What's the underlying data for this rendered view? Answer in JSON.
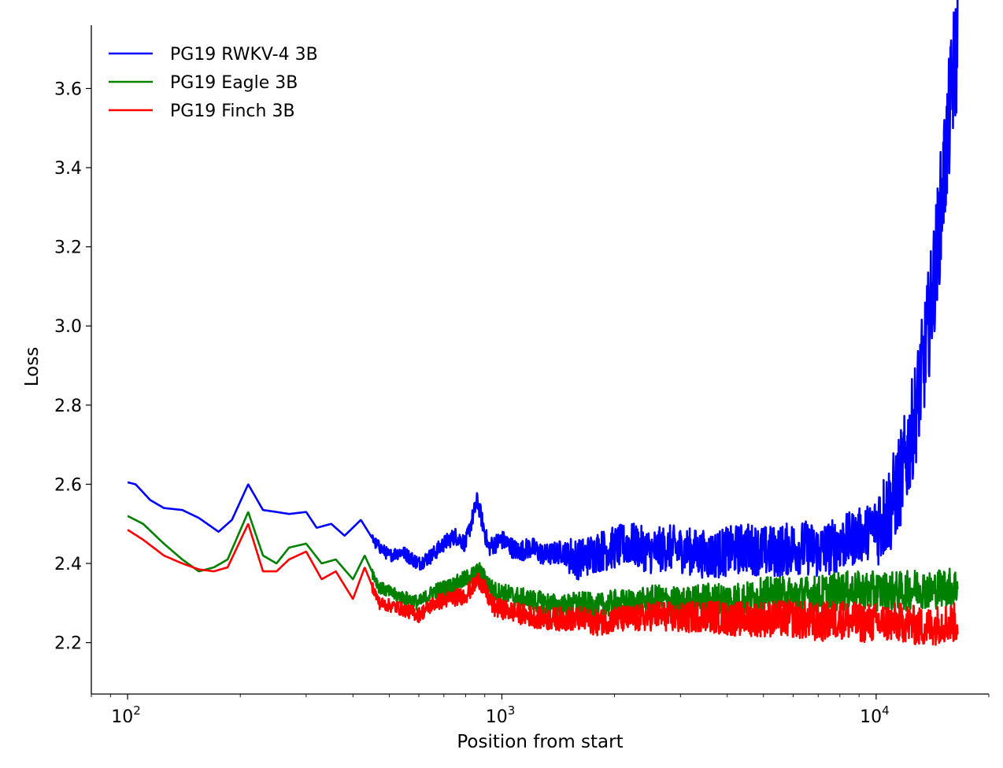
{
  "chart_data": {
    "type": "line",
    "title": "",
    "xlabel": "Position from start",
    "ylabel": "Loss",
    "xscale": "log",
    "xlim": [
      80,
      20000
    ],
    "ylim": [
      2.07,
      3.76
    ],
    "grid": false,
    "legend_position": "top-left",
    "x_ticks": [
      {
        "value": 100,
        "base": "10",
        "exp": "2"
      },
      {
        "value": 1000,
        "base": "10",
        "exp": "3"
      },
      {
        "value": 10000,
        "base": "10",
        "exp": "4"
      }
    ],
    "y_ticks": [
      "2.2",
      "2.4",
      "2.6",
      "2.8",
      "3.0",
      "3.2",
      "3.4",
      "3.6"
    ],
    "series": [
      {
        "name": "PG19 RWKV-4 3B",
        "color": "#0000ff",
        "points": [
          [
            100,
            2.605
          ],
          [
            105,
            2.6
          ],
          [
            115,
            2.56
          ],
          [
            125,
            2.54
          ],
          [
            140,
            2.535
          ],
          [
            155,
            2.515
          ],
          [
            175,
            2.48
          ],
          [
            190,
            2.51
          ],
          [
            210,
            2.6
          ],
          [
            230,
            2.535
          ],
          [
            250,
            2.53
          ],
          [
            270,
            2.525
          ],
          [
            300,
            2.53
          ],
          [
            320,
            2.49
          ],
          [
            350,
            2.5
          ],
          [
            380,
            2.47
          ],
          [
            420,
            2.51
          ],
          [
            460,
            2.45
          ],
          [
            500,
            2.42
          ],
          [
            540,
            2.43
          ],
          [
            600,
            2.4
          ],
          [
            650,
            2.42
          ],
          [
            700,
            2.45
          ],
          [
            750,
            2.47
          ],
          [
            800,
            2.45
          ],
          [
            860,
            2.56
          ],
          [
            920,
            2.44
          ],
          [
            1000,
            2.46
          ],
          [
            1100,
            2.43
          ],
          [
            1200,
            2.44
          ],
          [
            1300,
            2.42
          ],
          [
            1450,
            2.43
          ],
          [
            1600,
            2.41
          ],
          [
            1800,
            2.43
          ],
          [
            2000,
            2.44
          ],
          [
            2200,
            2.45
          ],
          [
            2500,
            2.43
          ],
          [
            2800,
            2.44
          ],
          [
            3200,
            2.43
          ],
          [
            3600,
            2.42
          ],
          [
            4000,
            2.43
          ],
          [
            4500,
            2.44
          ],
          [
            5000,
            2.43
          ],
          [
            5500,
            2.43
          ],
          [
            6000,
            2.44
          ],
          [
            6500,
            2.44
          ],
          [
            7000,
            2.43
          ],
          [
            7500,
            2.44
          ],
          [
            8000,
            2.45
          ],
          [
            8500,
            2.46
          ],
          [
            9000,
            2.47
          ],
          [
            9500,
            2.48
          ],
          [
            10000,
            2.5
          ],
          [
            10500,
            2.52
          ],
          [
            11000,
            2.55
          ],
          [
            11500,
            2.6
          ],
          [
            12000,
            2.66
          ],
          [
            12500,
            2.74
          ],
          [
            13000,
            2.83
          ],
          [
            13500,
            2.93
          ],
          [
            14000,
            3.05
          ],
          [
            14500,
            3.18
          ],
          [
            15000,
            3.33
          ],
          [
            15500,
            3.47
          ],
          [
            16000,
            3.62
          ],
          [
            16500,
            3.71
          ]
        ]
      },
      {
        "name": "PG19 Eagle 3B",
        "color": "#008000",
        "points": [
          [
            100,
            2.52
          ],
          [
            110,
            2.5
          ],
          [
            125,
            2.45
          ],
          [
            140,
            2.41
          ],
          [
            155,
            2.38
          ],
          [
            170,
            2.39
          ],
          [
            185,
            2.41
          ],
          [
            210,
            2.53
          ],
          [
            230,
            2.42
          ],
          [
            250,
            2.4
          ],
          [
            270,
            2.44
          ],
          [
            300,
            2.45
          ],
          [
            330,
            2.4
          ],
          [
            360,
            2.41
          ],
          [
            400,
            2.36
          ],
          [
            430,
            2.42
          ],
          [
            470,
            2.34
          ],
          [
            520,
            2.32
          ],
          [
            560,
            2.31
          ],
          [
            600,
            2.3
          ],
          [
            660,
            2.33
          ],
          [
            720,
            2.34
          ],
          [
            800,
            2.36
          ],
          [
            870,
            2.38
          ],
          [
            950,
            2.33
          ],
          [
            1050,
            2.32
          ],
          [
            1150,
            2.31
          ],
          [
            1300,
            2.3
          ],
          [
            1450,
            2.29
          ],
          [
            1600,
            2.3
          ],
          [
            1800,
            2.29
          ],
          [
            2000,
            2.3
          ],
          [
            2300,
            2.3
          ],
          [
            2600,
            2.31
          ],
          [
            3000,
            2.3
          ],
          [
            3500,
            2.31
          ],
          [
            4000,
            2.31
          ],
          [
            4500,
            2.31
          ],
          [
            5000,
            2.32
          ],
          [
            6000,
            2.32
          ],
          [
            7000,
            2.32
          ],
          [
            8000,
            2.33
          ],
          [
            9000,
            2.33
          ],
          [
            10000,
            2.33
          ],
          [
            11000,
            2.33
          ],
          [
            12000,
            2.33
          ],
          [
            13000,
            2.34
          ],
          [
            14000,
            2.33
          ],
          [
            15000,
            2.34
          ],
          [
            16500,
            2.34
          ]
        ]
      },
      {
        "name": "PG19 Finch 3B",
        "color": "#ff0000",
        "points": [
          [
            100,
            2.485
          ],
          [
            110,
            2.46
          ],
          [
            125,
            2.42
          ],
          [
            140,
            2.4
          ],
          [
            155,
            2.385
          ],
          [
            170,
            2.38
          ],
          [
            185,
            2.39
          ],
          [
            210,
            2.5
          ],
          [
            230,
            2.38
          ],
          [
            250,
            2.38
          ],
          [
            270,
            2.41
          ],
          [
            300,
            2.43
          ],
          [
            330,
            2.36
          ],
          [
            360,
            2.38
          ],
          [
            400,
            2.31
          ],
          [
            430,
            2.39
          ],
          [
            470,
            2.3
          ],
          [
            520,
            2.29
          ],
          [
            560,
            2.28
          ],
          [
            600,
            2.27
          ],
          [
            660,
            2.3
          ],
          [
            720,
            2.31
          ],
          [
            800,
            2.32
          ],
          [
            870,
            2.36
          ],
          [
            950,
            2.29
          ],
          [
            1050,
            2.28
          ],
          [
            1150,
            2.27
          ],
          [
            1300,
            2.26
          ],
          [
            1450,
            2.26
          ],
          [
            1600,
            2.26
          ],
          [
            1800,
            2.25
          ],
          [
            2000,
            2.26
          ],
          [
            2300,
            2.26
          ],
          [
            2600,
            2.27
          ],
          [
            3000,
            2.26
          ],
          [
            3500,
            2.27
          ],
          [
            4000,
            2.26
          ],
          [
            4500,
            2.26
          ],
          [
            5000,
            2.26
          ],
          [
            6000,
            2.26
          ],
          [
            7000,
            2.25
          ],
          [
            8000,
            2.26
          ],
          [
            9000,
            2.25
          ],
          [
            10000,
            2.25
          ],
          [
            11000,
            2.25
          ],
          [
            12000,
            2.25
          ],
          [
            13000,
            2.24
          ],
          [
            14000,
            2.24
          ],
          [
            15000,
            2.25
          ],
          [
            16500,
            2.25
          ]
        ]
      }
    ]
  }
}
